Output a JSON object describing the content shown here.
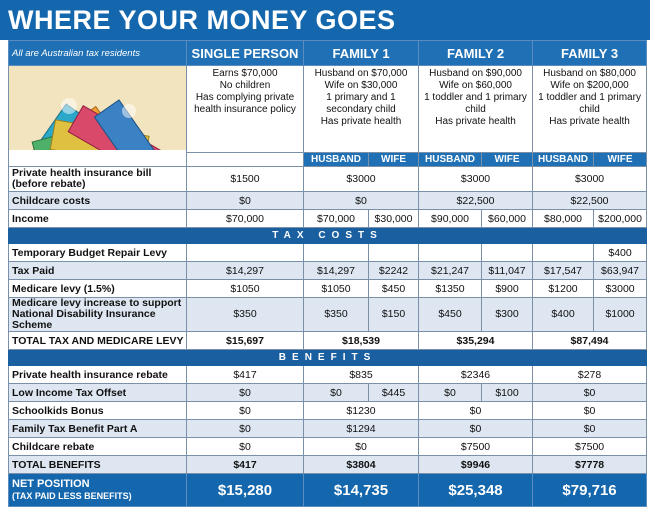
{
  "title": "WHERE YOUR MONEY GOES",
  "note": "All are Australian tax residents",
  "columns": [
    "SINGLE PERSON",
    "FAMILY 1",
    "FAMILY 2",
    "FAMILY 3"
  ],
  "descriptions": [
    [
      "Earns $70,000",
      "No children",
      "Has complying private health insurance policy"
    ],
    [
      "Husband on $70,000",
      "Wife on $30,000",
      "1 primary and 1 secondary child",
      "Has private health"
    ],
    [
      "Husband on $90,000",
      "Wife on $60,000",
      "1 toddler and 1 primary child",
      "Has private health"
    ],
    [
      "Husband on $80,000",
      "Wife on $200,000",
      "1 toddler and 1 primary child",
      "Has private health"
    ]
  ],
  "husband_label": "HUSBAND",
  "wife_label": "WIFE",
  "rows_top": [
    {
      "label": "Private health insurance bill (before rebate)",
      "single": "$1500",
      "f1": "$3000",
      "f2": "$3000",
      "f3": "$3000"
    },
    {
      "label": "Childcare costs",
      "single": "$0",
      "f1": "$0",
      "f2": "$22,500",
      "f3": "$22,500"
    },
    {
      "label": "Income",
      "single": "$70,000",
      "f1h": "$70,000",
      "f1w": "$30,000",
      "f2h": "$90,000",
      "f2w": "$60,000",
      "f3h": "$80,000",
      "f3w": "$200,000"
    }
  ],
  "section_tax": "TAX COSTS",
  "rows_tax": [
    {
      "label": "Temporary Budget Repair Levy",
      "single": "",
      "f1h": "",
      "f1w": "",
      "f2h": "",
      "f2w": "",
      "f3h": "",
      "f3w": "$400"
    },
    {
      "label": "Tax Paid",
      "single": "$14,297",
      "f1h": "$14,297",
      "f1w": "$2242",
      "f2h": "$21,247",
      "f2w": "$11,047",
      "f3h": "$17,547",
      "f3w": "$63,947"
    },
    {
      "label": "Medicare levy (1.5%)",
      "single": "$1050",
      "f1h": "$1050",
      "f1w": "$450",
      "f2h": "$1350",
      "f2w": "$900",
      "f3h": "$1200",
      "f3w": "$3000"
    },
    {
      "label": "Medicare levy increase to support National Disability Insurance Scheme",
      "single": "$350",
      "f1h": "$350",
      "f1w": "$150",
      "f2h": "$450",
      "f2w": "$300",
      "f3h": "$400",
      "f3w": "$1000"
    }
  ],
  "total_tax": {
    "label": "TOTAL TAX AND MEDICARE LEVY",
    "single": "$15,697",
    "f1": "$18,539",
    "f2": "$35,294",
    "f3": "$87,494"
  },
  "section_benefits": "BENEFITS",
  "rows_benefits": [
    {
      "label": "Private health insurance rebate",
      "single": "$417",
      "f1": "$835",
      "f2": "$2346",
      "f3": "$278"
    },
    {
      "label": "Low Income Tax Offset",
      "single": "$0",
      "f1h": "$0",
      "f1w": "$445",
      "f2h": "$0",
      "f2w": "$100",
      "f3": "$0",
      "split": true
    },
    {
      "label": "Schoolkids Bonus",
      "single": "$0",
      "f1": "$1230",
      "f2": "$0",
      "f3": "$0"
    },
    {
      "label": "Family Tax Benefit Part A",
      "single": "$0",
      "f1": "$1294",
      "f2": "$0",
      "f3": "$0"
    },
    {
      "label": "Childcare rebate",
      "single": "$0",
      "f1": "$0",
      "f2": "$7500",
      "f3": "$7500"
    },
    {
      "label": "TOTAL BENEFITS",
      "single": "$417",
      "f1": "$3804",
      "f2": "$9946",
      "f3": "$7778"
    }
  ],
  "net": {
    "label": "NET POSITION",
    "sublabel": "(TAX PAID LESS BENEFITS)",
    "single": "$15,280",
    "f1": "$14,735",
    "f2": "$25,348",
    "f3": "$79,716"
  }
}
